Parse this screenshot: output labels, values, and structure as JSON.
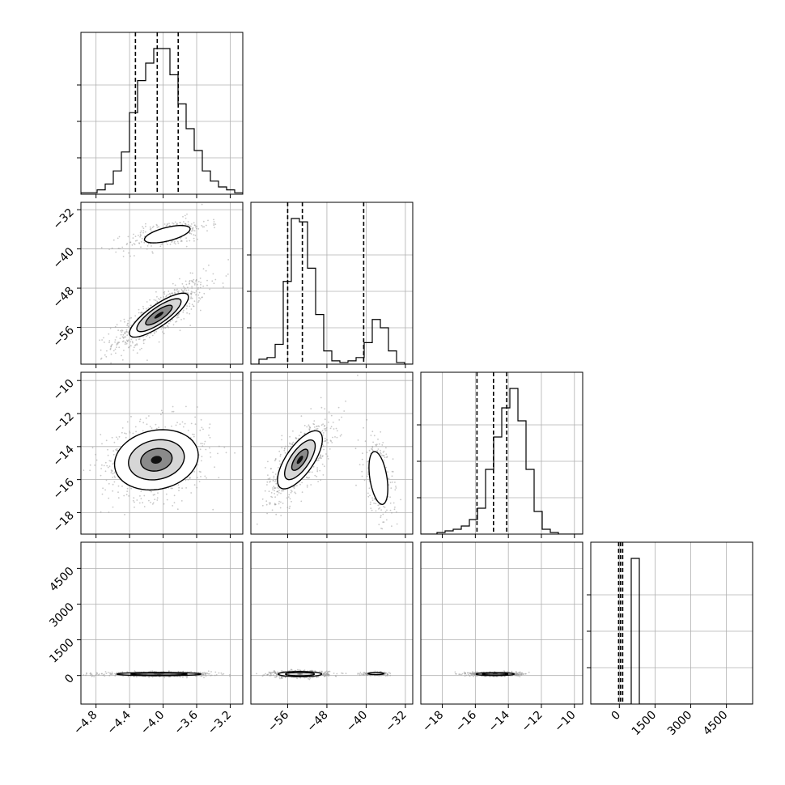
{
  "chart_data": {
    "type": "corner",
    "description_none": "",
    "parameters": [
      {
        "ticks": [
          -4.8,
          -4.4,
          -4.0,
          -3.6,
          -3.2
        ],
        "tick_labels": [
          "−4.8",
          "−4.4",
          "−4.0",
          "−3.6",
          "−3.2"
        ],
        "range": [
          -4.98,
          -3.05
        ],
        "quantiles": [
          -4.33,
          -4.07,
          -3.82
        ],
        "hist": {
          "edges_range": [
            -4.98,
            -3.05
          ],
          "counts": [
            1,
            1,
            3,
            7,
            16,
            29,
            56,
            78,
            90,
            100,
            100,
            82,
            62,
            45,
            30,
            16,
            9,
            5,
            3,
            1
          ]
        },
        "blob": {
          "x": -4.05,
          "y": 0,
          "sx": 0.2,
          "sy": 0,
          "rho": 0
        }
      },
      {
        "ticks": [
          -56,
          -48,
          -40,
          -32
        ],
        "tick_labels": [
          "−56",
          "−48",
          "−40",
          "−32"
        ],
        "range": [
          -63.5,
          -30.5
        ],
        "quantiles": [
          -56.0,
          -53.0,
          -40.5
        ],
        "hist": {
          "edges_range": [
            -63.5,
            -30.5
          ],
          "counts": [
            0,
            3,
            4,
            12,
            50,
            88,
            86,
            58,
            30,
            8,
            2,
            1,
            2,
            4,
            13,
            27,
            22,
            8,
            1,
            0
          ]
        }
      },
      {
        "ticks": [
          -18,
          -16,
          -14,
          -12,
          -10
        ],
        "tick_labels": [
          "−18",
          "−16",
          "−14",
          "−12",
          "−10"
        ],
        "range": [
          -19.3,
          -9.5
        ],
        "quantiles": [
          -15.9,
          -14.9,
          -14.1
        ],
        "hist": {
          "edges_range": [
            -19.3,
            -9.5
          ],
          "counts": [
            0,
            0,
            1,
            2,
            3,
            5,
            9,
            16,
            40,
            60,
            78,
            90,
            70,
            40,
            14,
            3,
            1,
            0,
            0,
            0
          ]
        }
      },
      {
        "ticks": [
          0,
          1500,
          3000,
          4500
        ],
        "tick_labels": [
          "0",
          "1500",
          "3000",
          "4500"
        ],
        "range": [
          -1200,
          5600
        ],
        "quantiles": [
          -30,
          50,
          140
        ],
        "hist": {
          "edges_range": [
            -1200,
            5600
          ],
          "counts": [
            0,
            0,
            0,
            0,
            0,
            100,
            0,
            0,
            0,
            0,
            0,
            0,
            0,
            0,
            0,
            0,
            0,
            0,
            0,
            0
          ]
        }
      }
    ],
    "pair_panels": [
      {
        "row": 1,
        "col": 0,
        "clusters": [
          {
            "cx": -4.05,
            "cy": -53.5,
            "sx": 0.22,
            "sy": 2.8,
            "rho": 0.82,
            "levels": [
              1.0,
              0.75,
              0.45
            ]
          },
          {
            "cx": -3.95,
            "cy": -37.0,
            "sx": 0.2,
            "sy": 1.3,
            "rho": 0.6,
            "levels": [
              0.85
            ]
          }
        ]
      },
      {
        "row": 2,
        "col": 0,
        "clusters": [
          {
            "cx": -4.08,
            "cy": -14.8,
            "sx": 0.26,
            "sy": 0.95,
            "rho": 0.15,
            "levels": [
              1.2,
              0.8,
              0.45
            ]
          }
        ]
      },
      {
        "row": 2,
        "col": 1,
        "clusters": [
          {
            "cx": -53.5,
            "cy": -14.8,
            "sx": 2.6,
            "sy": 1.0,
            "rho": 0.7,
            "levels": [
              1.1,
              0.75,
              0.4
            ]
          },
          {
            "cx": -37.5,
            "cy": -15.9,
            "sx": 1.2,
            "sy": 1.0,
            "rho": -0.4,
            "levels": [
              1.0
            ]
          }
        ]
      },
      {
        "row": 3,
        "col": 0,
        "clusters": [
          {
            "cx": -4.05,
            "cy": 60,
            "sx": 0.26,
            "sy": 35,
            "rho": 0.0,
            "levels": [
              1.2,
              0.8
            ]
          }
        ]
      },
      {
        "row": 3,
        "col": 1,
        "clusters": [
          {
            "cx": -53.5,
            "cy": 60,
            "sx": 2.3,
            "sy": 55,
            "rho": 0.0,
            "levels": [
              1.2,
              0.8
            ]
          },
          {
            "cx": -38.0,
            "cy": 80,
            "sx": 1.0,
            "sy": 25,
            "rho": 0.0,
            "levels": [
              1.0
            ]
          }
        ]
      },
      {
        "row": 3,
        "col": 2,
        "clusters": [
          {
            "cx": -14.8,
            "cy": 60,
            "sx": 0.6,
            "sy": 32,
            "rho": 0.0,
            "levels": [
              1.2,
              0.8
            ]
          }
        ]
      }
    ],
    "grid": true,
    "axis_labels": []
  }
}
